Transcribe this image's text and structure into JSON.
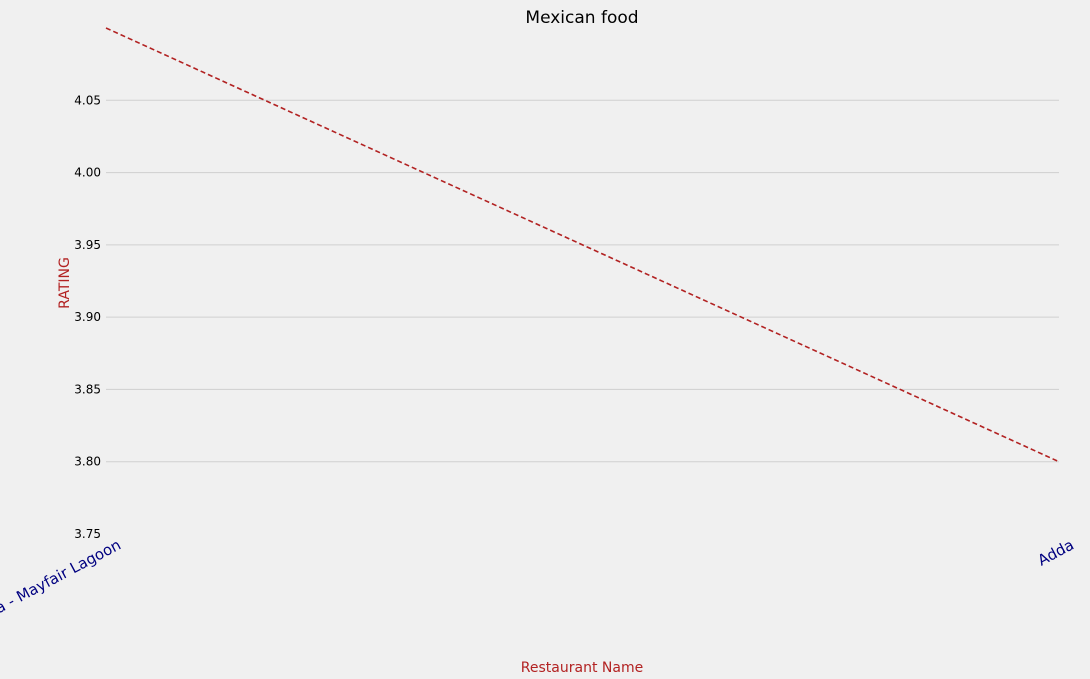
{
  "chart_data": {
    "type": "line",
    "title": "Mexican food",
    "xlabel": "Restaurant Name",
    "ylabel": "RATING",
    "categories": [
      "Mamma Mia - Mayfair Lagoon",
      "Adda"
    ],
    "series": [
      {
        "values": [
          4.1,
          3.8
        ]
      }
    ],
    "ylim": [
      3.75,
      4.1
    ],
    "yticks": [
      "3.75",
      "3.80",
      "3.85",
      "3.90",
      "3.95",
      "4.00",
      "4.05"
    ],
    "grid": "horizontal",
    "line_style": "dashed"
  },
  "colors": {
    "background": "#f0f0f0",
    "line": "#b22222",
    "xtick_text": "#000080",
    "axis_label_text": "#b22222",
    "grid": "#cfcfcf"
  }
}
